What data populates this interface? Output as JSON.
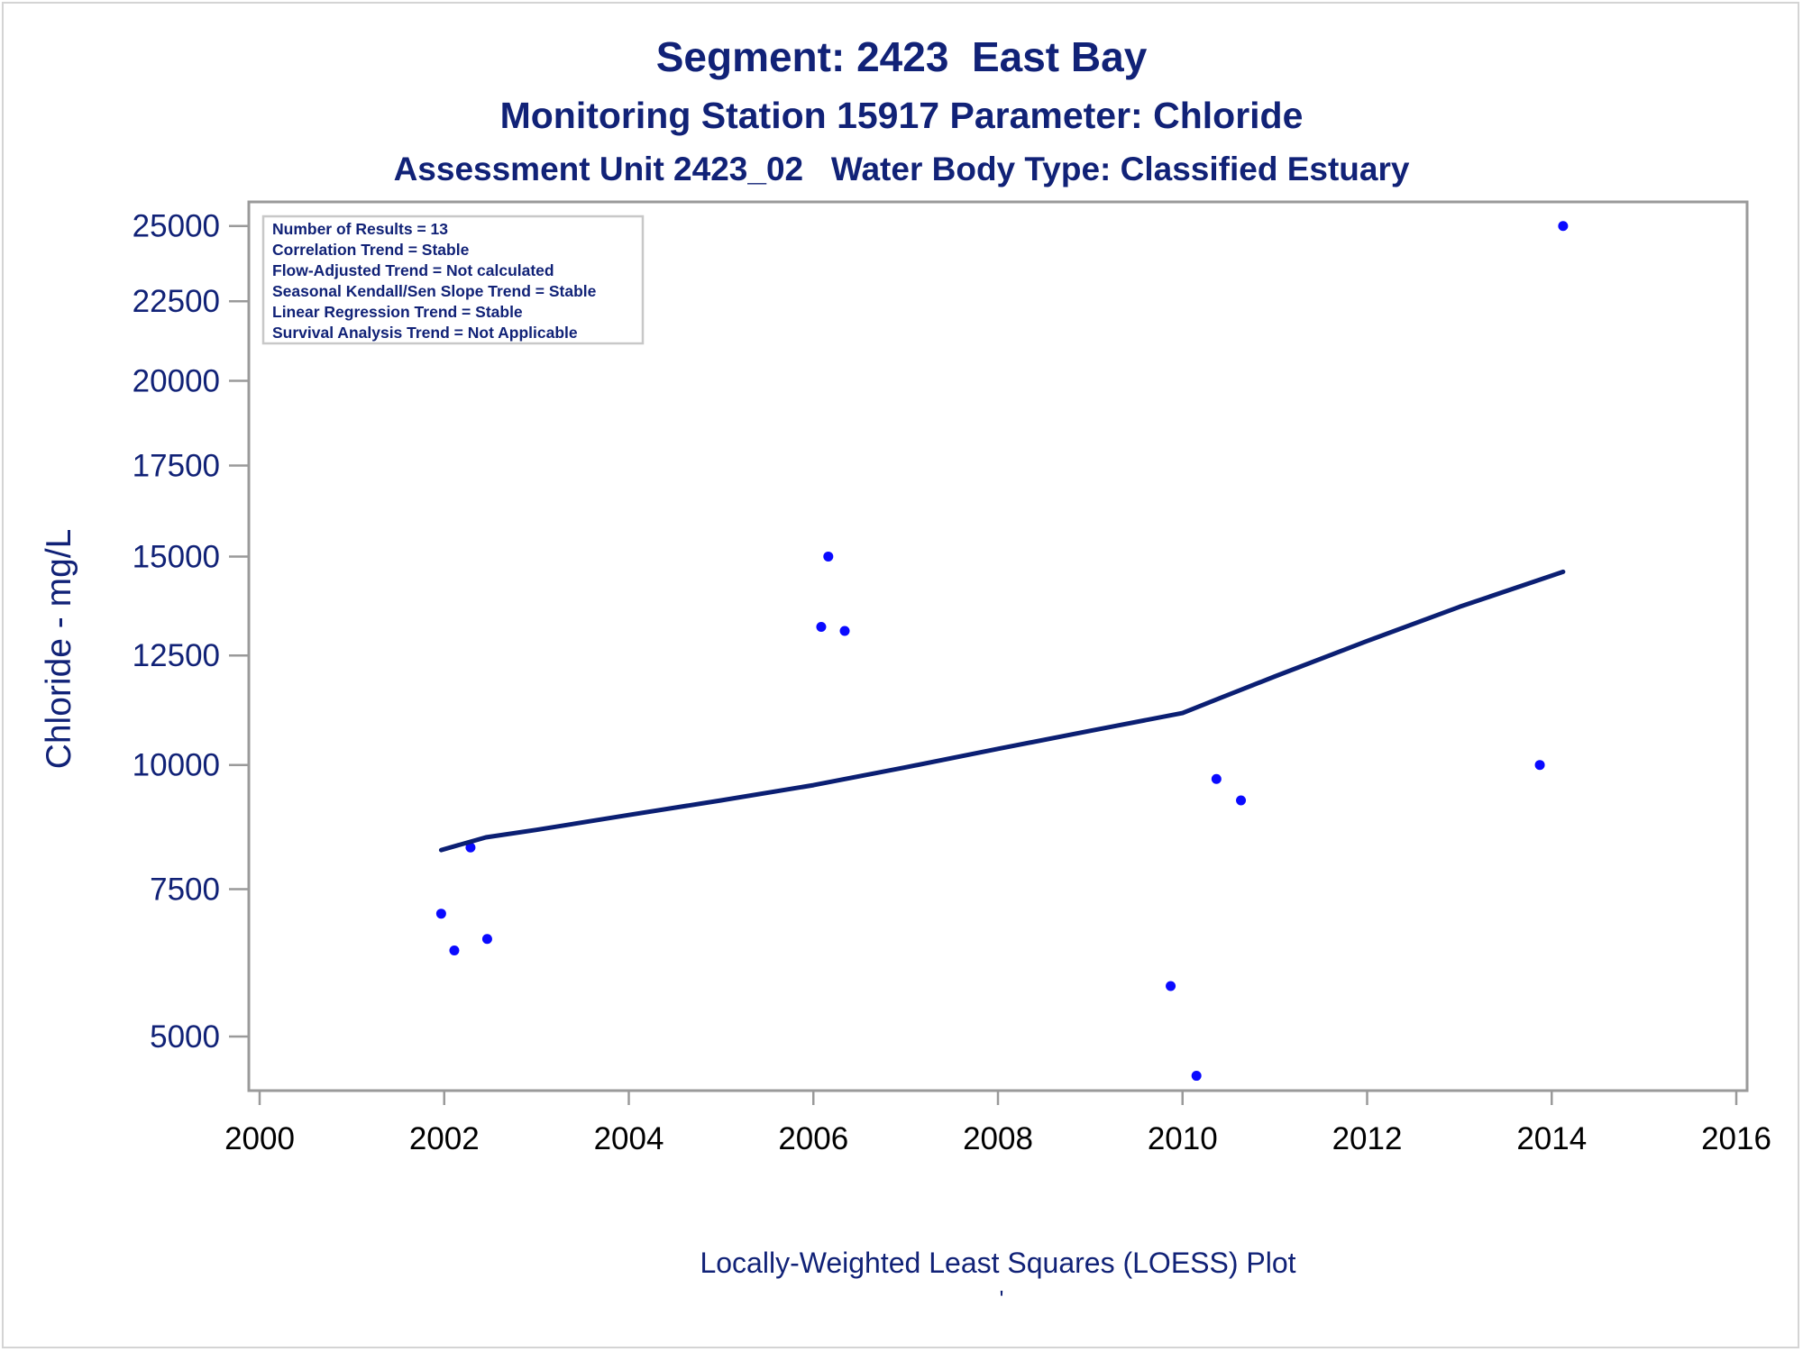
{
  "titles": {
    "line1": "Segment: 2423  East Bay",
    "line2": "Monitoring Station 15917 Parameter: Chloride",
    "line3": "Assessment Unit 2423_02   Water Body Type: Classified Estuary"
  },
  "footnote": "Locally-Weighted Least Squares (LOESS) Plot",
  "footnote_mark": "'",
  "stats_box": [
    "Number of Results = 13",
    "Correlation Trend = Stable",
    "Flow-Adjusted Trend = Not calculated",
    "Seasonal Kendall/Sen Slope Trend = Stable",
    "Linear Regression Trend = Stable",
    "Survival Analysis Trend = Not Applicable"
  ],
  "colors": {
    "title": "#112277",
    "points": "#0a0aff",
    "loess_line": "#0b1f73",
    "axis": "#9a9a9a"
  },
  "chart_data": {
    "type": "scatter",
    "ylabel": "Chloride - mg/L",
    "xlabel": "",
    "y_scale": "sqrt",
    "xlim": [
      2000,
      2016
    ],
    "ylim": [
      4350,
      25300
    ],
    "x_ticks": [
      "2000",
      "2002",
      "2004",
      "2006",
      "2008",
      "2010",
      "2012",
      "2014",
      "2016"
    ],
    "y_ticks": [
      "5000",
      "7500",
      "10000",
      "12500",
      "15000",
      "17500",
      "20000",
      "22500",
      "25000"
    ],
    "grid": false,
    "series": [
      {
        "kind": "points",
        "points": [
          {
            "x": "2001-12-20",
            "y": 7050
          },
          {
            "x": "2002-02-10",
            "y": 6400
          },
          {
            "x": "2002-04-15",
            "y": 8300
          },
          {
            "x": "2002-06-20",
            "y": 6600
          },
          {
            "x": "2006-02-01",
            "y": 13200
          },
          {
            "x": "2006-03-01",
            "y": 15000
          },
          {
            "x": "2006-05-05",
            "y": 13100
          },
          {
            "x": "2009-11-15",
            "y": 5800
          },
          {
            "x": "2010-02-25",
            "y": 4420
          },
          {
            "x": "2010-05-15",
            "y": 9700
          },
          {
            "x": "2010-08-20",
            "y": 9250
          },
          {
            "x": "2013-11-15",
            "y": 10000
          },
          {
            "x": "2014-02-15",
            "y": 25000
          }
        ]
      },
      {
        "kind": "line",
        "points": [
          {
            "x": "2001-12-20",
            "y": 8250
          },
          {
            "x": "2002-06-15",
            "y": 8500
          },
          {
            "x": "2003-01-01",
            "y": 8650
          },
          {
            "x": "2004-01-01",
            "y": 8950
          },
          {
            "x": "2005-01-01",
            "y": 9250
          },
          {
            "x": "2006-01-01",
            "y": 9570
          },
          {
            "x": "2007-01-01",
            "y": 9950
          },
          {
            "x": "2008-01-01",
            "y": 10350
          },
          {
            "x": "2009-01-01",
            "y": 10750
          },
          {
            "x": "2010-01-01",
            "y": 11150
          },
          {
            "x": "2010-06-01",
            "y": 11500
          },
          {
            "x": "2011-01-01",
            "y": 12000
          },
          {
            "x": "2012-01-01",
            "y": 12850
          },
          {
            "x": "2013-01-01",
            "y": 13700
          },
          {
            "x": "2014-02-15",
            "y": 14600
          }
        ]
      }
    ]
  }
}
